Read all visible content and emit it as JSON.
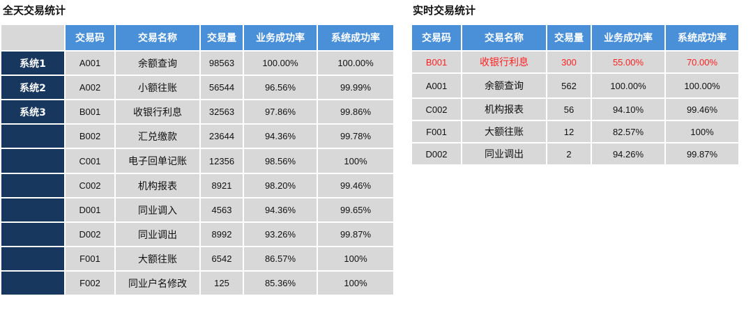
{
  "left": {
    "title": "全天交易统计",
    "headers": [
      "交易码",
      "交易名称",
      "交易量",
      "业务成功率",
      "系统成功率"
    ],
    "systems": [
      "系统1",
      "系统2",
      "系统3",
      "",
      "",
      "",
      "",
      "",
      "",
      ""
    ],
    "rows": [
      {
        "code": "A001",
        "name": "余额查询",
        "volume": "98563",
        "biz_rate": "100.00%",
        "sys_rate": "100.00%"
      },
      {
        "code": "A002",
        "name": "小额往账",
        "volume": "56544",
        "biz_rate": "96.56%",
        "sys_rate": "99.99%"
      },
      {
        "code": "B001",
        "name": "收银行利息",
        "volume": "32563",
        "biz_rate": "97.86%",
        "sys_rate": "99.86%"
      },
      {
        "code": "B002",
        "name": "汇兑缴款",
        "volume": "23644",
        "biz_rate": "94.36%",
        "sys_rate": "99.78%"
      },
      {
        "code": "C001",
        "name": "电子回单记账",
        "volume": "12356",
        "biz_rate": "98.56%",
        "sys_rate": "100%"
      },
      {
        "code": "C002",
        "name": "机构报表",
        "volume": "8921",
        "biz_rate": "98.20%",
        "sys_rate": "99.46%"
      },
      {
        "code": "D001",
        "name": "同业调入",
        "volume": "4563",
        "biz_rate": "94.36%",
        "sys_rate": "99.65%"
      },
      {
        "code": "D002",
        "name": "同业调出",
        "volume": "8992",
        "biz_rate": "93.26%",
        "sys_rate": "99.87%"
      },
      {
        "code": "F001",
        "name": "大额往账",
        "volume": "6542",
        "biz_rate": "86.57%",
        "sys_rate": "100%"
      },
      {
        "code": "F002",
        "name": "同业户名修改",
        "volume": "125",
        "biz_rate": "85.36%",
        "sys_rate": "100%"
      }
    ]
  },
  "right": {
    "title": "实时交易统计",
    "headers": [
      "交易码",
      "交易名称",
      "交易量",
      "业务成功率",
      "系统成功率"
    ],
    "highlight_color": "#ff1f1f",
    "rows": [
      {
        "code": "B001",
        "name": "收银行利息",
        "volume": "300",
        "biz_rate": "55.00%",
        "sys_rate": "70.00%"
      },
      {
        "code": "A001",
        "name": "余额查询",
        "volume": "562",
        "biz_rate": "100.00%",
        "sys_rate": "100.00%"
      },
      {
        "code": "C002",
        "name": "机构报表",
        "volume": "56",
        "biz_rate": "94.10%",
        "sys_rate": "99.46%"
      },
      {
        "code": "F001",
        "name": "大额往账",
        "volume": "12",
        "biz_rate": "82.57%",
        "sys_rate": "100%"
      },
      {
        "code": "D002",
        "name": "同业调出",
        "volume": "2",
        "biz_rate": "94.26%",
        "sys_rate": "99.87%"
      }
    ]
  },
  "colors": {
    "header_bg": "#4a90d9",
    "system_bg": "#17375e",
    "cell_bg": "#d8d8d8"
  }
}
